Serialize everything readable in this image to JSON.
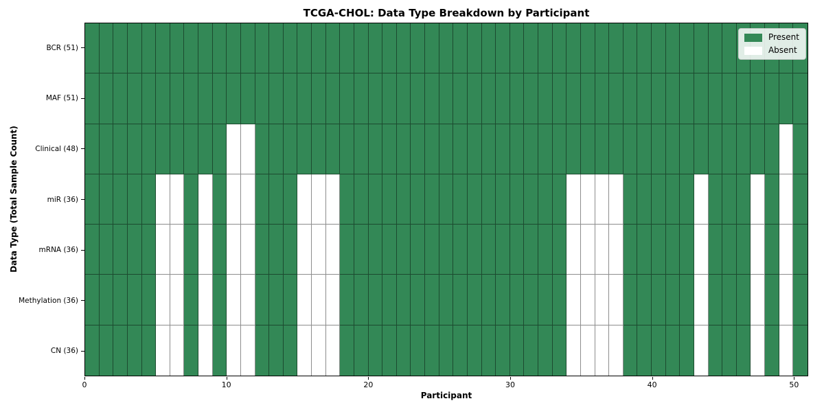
{
  "colors": {
    "present": "#338856",
    "absent": "#ffffff",
    "cell_border": "rgba(0,0,0,0.45)",
    "axis": "#000000",
    "legend_background": "rgba(255,255,255,0.85)",
    "legend_border": "#cccccc"
  },
  "chart_data": {
    "type": "heatmap",
    "title": "TCGA-CHOL: Data Type Breakdown by Participant",
    "xlabel": "Participant",
    "ylabel": "Data Type (Total Sample Count)",
    "n_participants": 51,
    "x_range": [
      0,
      51
    ],
    "x_ticks": [
      0,
      10,
      20,
      30,
      40,
      50
    ],
    "grid": true,
    "legend_position": "upper right",
    "legend": [
      "Present",
      "Absent"
    ],
    "cell_values": {
      "present": 1,
      "absent": 0
    },
    "rows": [
      {
        "label": "BCR (51)",
        "data_type": "BCR",
        "total_present": 51,
        "absent_participants": []
      },
      {
        "label": "MAF (51)",
        "data_type": "MAF",
        "total_present": 51,
        "absent_participants": []
      },
      {
        "label": "Clinical (48)",
        "data_type": "Clinical",
        "total_present": 48,
        "absent_participants": [
          10,
          11,
          49
        ]
      },
      {
        "label": "miR (36)",
        "data_type": "miR",
        "total_present": 36,
        "absent_participants": [
          5,
          6,
          8,
          10,
          11,
          15,
          16,
          17,
          34,
          35,
          36,
          37,
          43,
          47,
          49
        ]
      },
      {
        "label": "mRNA (36)",
        "data_type": "mRNA",
        "total_present": 36,
        "absent_participants": [
          5,
          6,
          8,
          10,
          11,
          15,
          16,
          17,
          34,
          35,
          36,
          37,
          43,
          47,
          49
        ]
      },
      {
        "label": "Methylation (36)",
        "data_type": "Methylation",
        "total_present": 36,
        "absent_participants": [
          5,
          6,
          8,
          10,
          11,
          15,
          16,
          17,
          34,
          35,
          36,
          37,
          43,
          47,
          49
        ]
      },
      {
        "label": "CN (36)",
        "data_type": "CN",
        "total_present": 36,
        "absent_participants": [
          5,
          6,
          8,
          10,
          11,
          15,
          16,
          17,
          34,
          35,
          36,
          37,
          43,
          47,
          49
        ]
      }
    ]
  }
}
